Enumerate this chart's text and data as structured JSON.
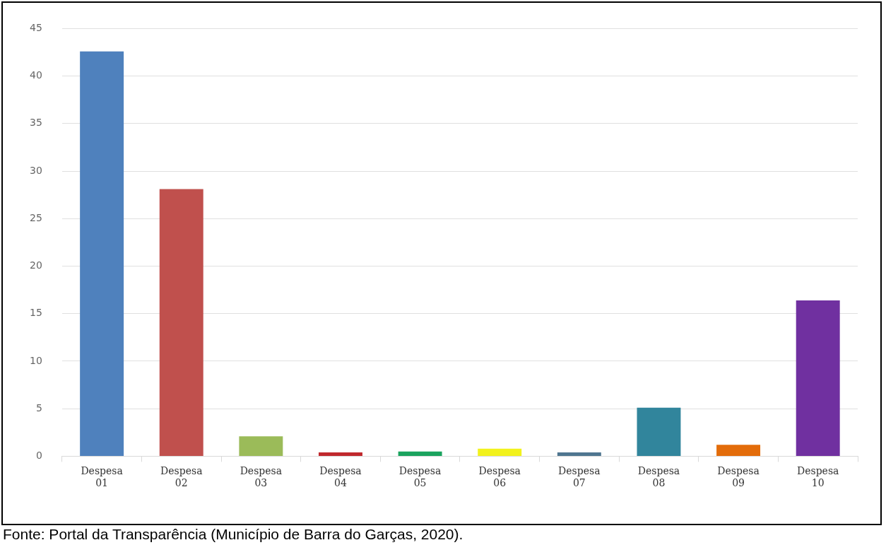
{
  "chart_data": {
    "type": "bar",
    "categories": [
      "Despesa 01",
      "Despesa 02",
      "Despesa 03",
      "Despesa 04",
      "Despesa 05",
      "Despesa 06",
      "Despesa 07",
      "Despesa 08",
      "Despesa 09",
      "Despesa 10"
    ],
    "values": [
      42.6,
      28.1,
      2.1,
      0.4,
      0.5,
      0.8,
      0.4,
      5.1,
      1.2,
      16.4
    ],
    "colors": [
      "#4f81bd",
      "#c0504d",
      "#9bbb59",
      "#c0282d",
      "#1aa35e",
      "#f2f21c",
      "#4f7690",
      "#31859c",
      "#e36c0a",
      "#7030a0"
    ],
    "ylim": [
      0,
      45
    ],
    "yticks": [
      0,
      5,
      10,
      15,
      20,
      25,
      30,
      35,
      40,
      45
    ],
    "grid": "y",
    "legend": false,
    "annotations": [
      "Fonte: Portal da Transparência (Município de Barra do Garças, 2020)."
    ]
  }
}
